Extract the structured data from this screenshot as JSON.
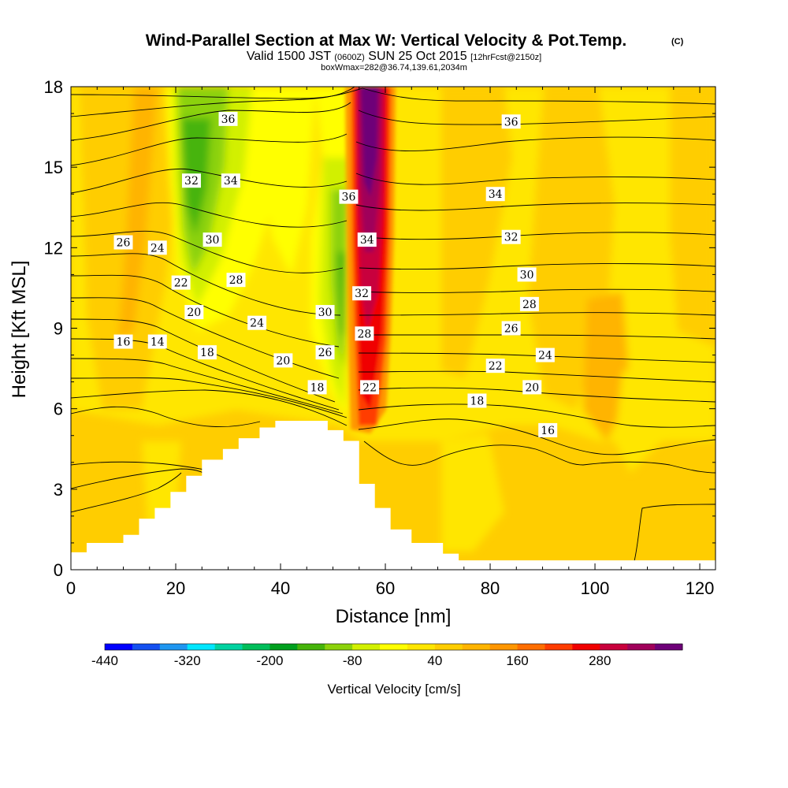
{
  "title": {
    "main": "Wind-Parallel Section at Max W: Vertical Velocity & Pot.Temp.",
    "copyright": "(C)",
    "valid_prefix": "Valid 1500 JST",
    "valid_utc": "(0600Z)",
    "valid_date": "SUN 25 Oct 2015",
    "forecast": "[12hrFcst@2150z]",
    "box_info": "boxWmax=282@36.74,139.61,2034m"
  },
  "chart_data": {
    "type": "heatmap",
    "xlabel": "Distance [nm]",
    "ylabel": "Height [Kft MSL]",
    "xlim": [
      0,
      123
    ],
    "ylim": [
      0,
      18
    ],
    "xticks": [
      "0",
      "20",
      "40",
      "60",
      "80",
      "100",
      "120"
    ],
    "yticks": [
      "0",
      "3",
      "6",
      "9",
      "12",
      "15",
      "18"
    ],
    "colorbar": {
      "label": "Vertical Velocity [cm/s]",
      "tick_labels": [
        "-440",
        "-320",
        "-200",
        "-80",
        "40",
        "160",
        "280"
      ],
      "levels_min": -440,
      "levels_step": 40,
      "colors": [
        "#0000ff",
        "#1450f0",
        "#1e96f0",
        "#00e6ff",
        "#00d2a0",
        "#00be5a",
        "#00a01e",
        "#46b40a",
        "#8cd20a",
        "#d2f000",
        "#ffff00",
        "#ffe600",
        "#ffcd00",
        "#ffb400",
        "#ff9600",
        "#ff6e00",
        "#ff3c00",
        "#f00000",
        "#c8003c",
        "#a0005a",
        "#6e0078"
      ]
    },
    "terrain": [
      [
        0,
        0.65
      ],
      [
        3,
        0.65
      ],
      [
        3,
        1.0
      ],
      [
        10,
        1.0
      ],
      [
        10,
        1.3
      ],
      [
        13,
        1.3
      ],
      [
        13,
        1.9
      ],
      [
        16,
        1.9
      ],
      [
        16,
        2.3
      ],
      [
        19,
        2.3
      ],
      [
        19,
        2.9
      ],
      [
        22,
        2.9
      ],
      [
        22,
        3.5
      ],
      [
        25,
        3.5
      ],
      [
        25,
        4.1
      ],
      [
        29,
        4.1
      ],
      [
        29,
        4.5
      ],
      [
        32,
        4.5
      ],
      [
        32,
        4.9
      ],
      [
        36,
        4.9
      ],
      [
        36,
        5.3
      ],
      [
        39,
        5.3
      ],
      [
        39,
        5.55
      ],
      [
        49,
        5.55
      ],
      [
        49,
        5.2
      ],
      [
        52,
        5.2
      ],
      [
        52,
        4.8
      ],
      [
        55,
        4.8
      ],
      [
        55,
        3.2
      ],
      [
        58,
        3.2
      ],
      [
        58,
        2.3
      ],
      [
        61,
        2.3
      ],
      [
        61,
        1.5
      ],
      [
        65,
        1.5
      ],
      [
        65,
        1.0
      ],
      [
        71,
        1.0
      ],
      [
        71,
        0.6
      ],
      [
        74,
        0.6
      ],
      [
        74,
        0.35
      ],
      [
        123,
        0.35
      ]
    ],
    "theta_labels": [
      {
        "x": 30,
        "y": 16.8,
        "text": "36"
      },
      {
        "x": 84,
        "y": 16.7,
        "text": "36"
      },
      {
        "x": 23,
        "y": 14.5,
        "text": "32"
      },
      {
        "x": 30.5,
        "y": 14.5,
        "text": "34"
      },
      {
        "x": 53,
        "y": 13.9,
        "text": "36"
      },
      {
        "x": 81,
        "y": 14.0,
        "text": "34"
      },
      {
        "x": 10,
        "y": 12.2,
        "text": "26"
      },
      {
        "x": 16.5,
        "y": 12.0,
        "text": "24"
      },
      {
        "x": 27,
        "y": 12.3,
        "text": "30"
      },
      {
        "x": 56.5,
        "y": 12.3,
        "text": "34"
      },
      {
        "x": 84,
        "y": 12.4,
        "text": "32"
      },
      {
        "x": 21,
        "y": 10.7,
        "text": "22"
      },
      {
        "x": 31.5,
        "y": 10.8,
        "text": "28"
      },
      {
        "x": 55.5,
        "y": 10.3,
        "text": "32"
      },
      {
        "x": 87,
        "y": 11.0,
        "text": "30"
      },
      {
        "x": 23.5,
        "y": 9.6,
        "text": "20"
      },
      {
        "x": 35.5,
        "y": 9.2,
        "text": "24"
      },
      {
        "x": 48.5,
        "y": 9.6,
        "text": "30"
      },
      {
        "x": 87.5,
        "y": 9.9,
        "text": "28"
      },
      {
        "x": 84,
        "y": 9.0,
        "text": "26"
      },
      {
        "x": 56,
        "y": 8.8,
        "text": "28"
      },
      {
        "x": 10,
        "y": 8.5,
        "text": "16"
      },
      {
        "x": 16.5,
        "y": 8.5,
        "text": "14"
      },
      {
        "x": 26,
        "y": 8.1,
        "text": "18"
      },
      {
        "x": 48.5,
        "y": 8.1,
        "text": "26"
      },
      {
        "x": 90.5,
        "y": 8.0,
        "text": "24"
      },
      {
        "x": 40.5,
        "y": 7.8,
        "text": "20"
      },
      {
        "x": 81,
        "y": 7.6,
        "text": "22"
      },
      {
        "x": 47,
        "y": 6.8,
        "text": "18"
      },
      {
        "x": 57,
        "y": 6.8,
        "text": "22"
      },
      {
        "x": 88,
        "y": 6.8,
        "text": "20"
      },
      {
        "x": 77.5,
        "y": 6.3,
        "text": "18"
      },
      {
        "x": 91,
        "y": 5.2,
        "text": "16"
      }
    ]
  }
}
